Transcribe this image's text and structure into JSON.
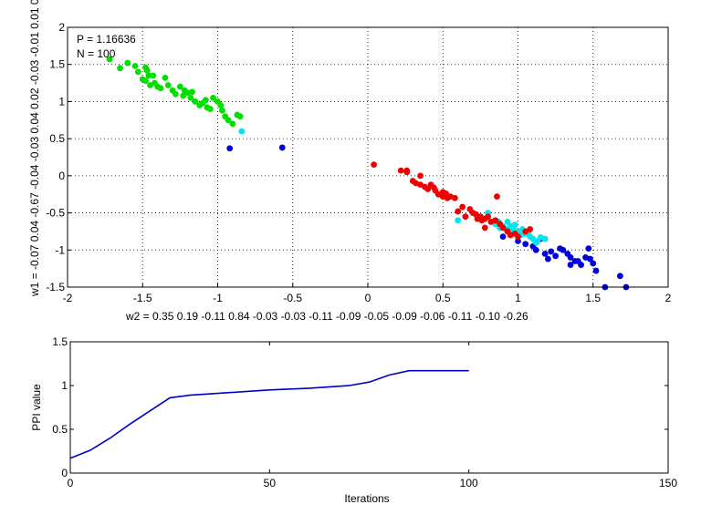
{
  "chart_data": [
    {
      "type": "scatter",
      "xlim": [
        -2,
        2
      ],
      "ylim": [
        -1.5,
        2
      ],
      "xticks": [
        "-2",
        "-1.5",
        "-1",
        "-0.5",
        "0",
        "0.5",
        "1",
        "1.5",
        "2"
      ],
      "yticks": [
        "-1.5",
        "-1",
        "-0.5",
        "0",
        "0.5",
        "1",
        "1.5",
        "2"
      ],
      "grid": true,
      "annotations": [
        "P = 1.16636",
        "N = 100"
      ],
      "xlabel": "w2 = 0.35  0.19  -0.11  0.84  -0.03  -0.03  -0.11  -0.09  -0.05  -0.09  -0.06  -0.11  -0.10  -0.26",
      "ylabel": "w1 = -0.07  0.04  -0.67  -0.04  -0.03  0.04  0.02  -0.03  -0.01  0.01  0",
      "colors": {
        "green": "#00e000",
        "blue": "#0000dd",
        "cyan": "#00e5ee",
        "red": "#ee0000"
      },
      "groups": [
        {
          "color": "green",
          "points": [
            [
              -1.72,
              1.57
            ],
            [
              -1.65,
              1.45
            ],
            [
              -1.6,
              1.52
            ],
            [
              -1.55,
              1.48
            ],
            [
              -1.53,
              1.4
            ],
            [
              -1.48,
              1.46
            ],
            [
              -1.47,
              1.42
            ],
            [
              -1.46,
              1.35
            ],
            [
              -1.5,
              1.3
            ],
            [
              -1.48,
              1.28
            ],
            [
              -1.45,
              1.22
            ],
            [
              -1.42,
              1.25
            ],
            [
              -1.4,
              1.2
            ],
            [
              -1.38,
              1.18
            ],
            [
              -1.35,
              1.32
            ],
            [
              -1.33,
              1.22
            ],
            [
              -1.3,
              1.15
            ],
            [
              -1.28,
              1.1
            ],
            [
              -1.25,
              1.2
            ],
            [
              -1.22,
              1.15
            ],
            [
              -1.2,
              1.12
            ],
            [
              -1.18,
              1.05
            ],
            [
              -1.15,
              1.0
            ],
            [
              -1.12,
              0.95
            ],
            [
              -1.1,
              0.98
            ],
            [
              -1.08,
              1.02
            ],
            [
              -1.05,
              0.9
            ],
            [
              -1.03,
              1.05
            ],
            [
              -1.0,
              1.0
            ],
            [
              -0.98,
              0.95
            ],
            [
              -0.95,
              0.8
            ],
            [
              -0.93,
              0.75
            ],
            [
              -0.9,
              0.7
            ],
            [
              -0.87,
              0.82
            ],
            [
              -0.85,
              0.8
            ],
            [
              -1.43,
              1.35
            ],
            [
              -1.23,
              1.08
            ],
            [
              -1.17,
              1.13
            ],
            [
              -1.07,
              0.92
            ],
            [
              -0.97,
              0.88
            ]
          ]
        },
        {
          "color": "blue",
          "points": [
            [
              -0.92,
              0.37
            ],
            [
              -0.57,
              0.38
            ],
            [
              0.9,
              -0.82
            ],
            [
              1.0,
              -0.88
            ],
            [
              1.05,
              -0.92
            ],
            [
              1.1,
              -0.95
            ],
            [
              1.12,
              -1.0
            ],
            [
              1.15,
              -0.85
            ],
            [
              1.18,
              -1.05
            ],
            [
              1.2,
              -1.12
            ],
            [
              1.22,
              -1.02
            ],
            [
              1.25,
              -1.08
            ],
            [
              1.28,
              -0.98
            ],
            [
              1.3,
              -1.0
            ],
            [
              1.33,
              -1.05
            ],
            [
              1.35,
              -1.2
            ],
            [
              1.38,
              -1.15
            ],
            [
              1.4,
              -1.15
            ],
            [
              1.42,
              -1.2
            ],
            [
              1.45,
              -1.1
            ],
            [
              1.47,
              -0.98
            ],
            [
              1.5,
              -1.18
            ],
            [
              1.52,
              -1.28
            ],
            [
              1.58,
              -1.5
            ],
            [
              1.68,
              -1.35
            ],
            [
              1.72,
              -1.5
            ],
            [
              1.48,
              -1.12
            ],
            [
              1.35,
              -1.1
            ]
          ]
        },
        {
          "color": "cyan",
          "points": [
            [
              -0.84,
              0.6
            ],
            [
              0.6,
              -0.6
            ],
            [
              0.8,
              -0.5
            ],
            [
              0.85,
              -0.65
            ],
            [
              0.88,
              -0.7
            ],
            [
              0.9,
              -0.68
            ],
            [
              0.92,
              -0.72
            ],
            [
              0.95,
              -0.75
            ],
            [
              0.97,
              -0.7
            ],
            [
              1.0,
              -0.75
            ],
            [
              1.02,
              -0.8
            ],
            [
              1.05,
              -0.78
            ],
            [
              1.08,
              -0.82
            ],
            [
              1.1,
              -0.85
            ],
            [
              1.13,
              -0.88
            ],
            [
              1.15,
              -0.83
            ],
            [
              1.18,
              -0.85
            ],
            [
              0.93,
              -0.62
            ],
            [
              0.98,
              -0.66
            ],
            [
              1.03,
              -0.72
            ],
            [
              1.07,
              -0.76
            ],
            [
              0.87,
              -0.62
            ],
            [
              0.95,
              -0.68
            ],
            [
              1.12,
              -0.9
            ]
          ]
        },
        {
          "color": "red",
          "points": [
            [
              0.04,
              0.15
            ],
            [
              0.22,
              0.07
            ],
            [
              0.26,
              0.05
            ],
            [
              0.26,
              0.07
            ],
            [
              0.3,
              -0.07
            ],
            [
              0.32,
              -0.1
            ],
            [
              0.35,
              -0.12
            ],
            [
              0.38,
              -0.15
            ],
            [
              0.4,
              -0.18
            ],
            [
              0.42,
              -0.12
            ],
            [
              0.45,
              -0.2
            ],
            [
              0.47,
              -0.25
            ],
            [
              0.5,
              -0.22
            ],
            [
              0.5,
              -0.28
            ],
            [
              0.53,
              -0.3
            ],
            [
              0.55,
              -0.28
            ],
            [
              0.58,
              -0.3
            ],
            [
              0.6,
              -0.48
            ],
            [
              0.65,
              -0.55
            ],
            [
              0.68,
              -0.45
            ],
            [
              0.7,
              -0.5
            ],
            [
              0.72,
              -0.52
            ],
            [
              0.75,
              -0.55
            ],
            [
              0.78,
              -0.58
            ],
            [
              0.8,
              -0.55
            ],
            [
              0.82,
              -0.62
            ],
            [
              0.85,
              -0.6
            ],
            [
              0.88,
              -0.65
            ],
            [
              0.9,
              -0.7
            ],
            [
              0.93,
              -0.75
            ],
            [
              0.95,
              -0.8
            ],
            [
              0.98,
              -0.78
            ],
            [
              1.0,
              -0.82
            ],
            [
              1.05,
              -0.75
            ],
            [
              1.08,
              -0.72
            ],
            [
              0.86,
              -0.28
            ],
            [
              0.76,
              -0.6
            ],
            [
              0.78,
              -0.7
            ],
            [
              0.35,
              0.0
            ],
            [
              0.44,
              -0.16
            ],
            [
              0.52,
              -0.24
            ],
            [
              0.63,
              -0.42
            ],
            [
              0.73,
              -0.58
            ]
          ]
        }
      ]
    },
    {
      "type": "line",
      "xlim": [
        0,
        150
      ],
      "ylim": [
        0,
        1.5
      ],
      "xticks": [
        "0",
        "50",
        "100",
        "150"
      ],
      "yticks": [
        "0",
        "0.5",
        "1",
        "1.5"
      ],
      "grid": false,
      "xlabel": "Iterations",
      "ylabel": "PPI value",
      "color": "#0000cc",
      "x": [
        0,
        5,
        10,
        15,
        20,
        25,
        30,
        40,
        50,
        60,
        70,
        75,
        80,
        85,
        90,
        95,
        100
      ],
      "y": [
        0.17,
        0.26,
        0.4,
        0.56,
        0.71,
        0.86,
        0.89,
        0.92,
        0.95,
        0.97,
        1.0,
        1.04,
        1.12,
        1.17,
        1.17,
        1.17,
        1.17
      ]
    }
  ]
}
